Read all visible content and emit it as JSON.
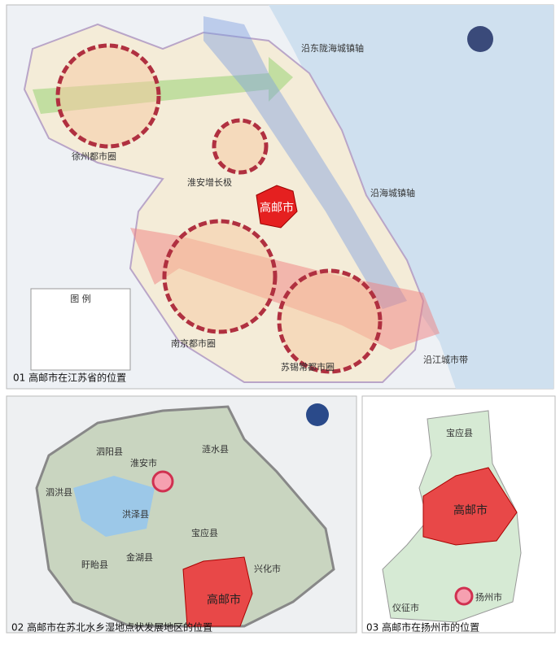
{
  "panel1": {
    "caption": "01 高邮市在江苏省的位置",
    "legend_title": "图 例",
    "labels": [
      "沿东陇海城镇轴",
      "徐州都市圈",
      "淮安增长极",
      "高邮市",
      "沿海城镇轴",
      "南京都市圈",
      "苏锡常都市圈",
      "沿江城市带"
    ]
  },
  "panel2": {
    "caption": "02 高邮市在苏北水乡湿地点状发展地区的位置",
    "labels": [
      "淮安市",
      "泗阳县",
      "涟水县",
      "泗洪县",
      "洪泽县",
      "盱眙县",
      "金湖县",
      "宝应县",
      "兴化市",
      "高邮市"
    ]
  },
  "panel3": {
    "caption": "03 高邮市在扬州市的位置",
    "labels": [
      "宝应县",
      "高邮市",
      "扬州市",
      "仪征市"
    ]
  }
}
